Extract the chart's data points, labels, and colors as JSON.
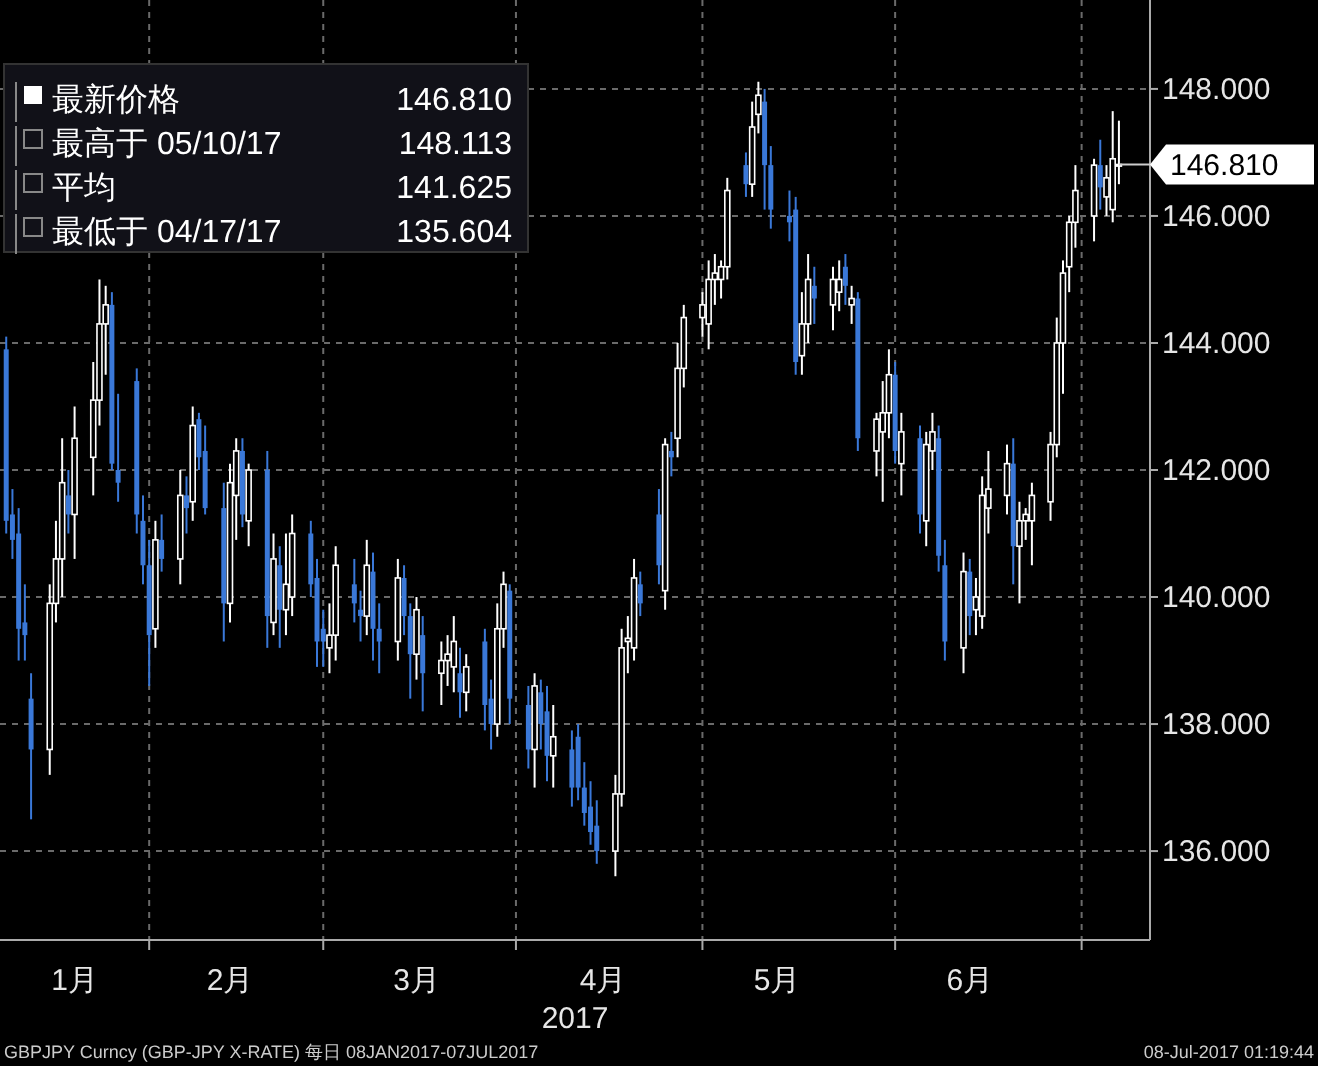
{
  "chart_data": {
    "type": "candlestick",
    "xlabel": "2017",
    "x": [
      "2017-01-09",
      "2017-01-10",
      "2017-01-11",
      "2017-01-12",
      "2017-01-13",
      "2017-01-16",
      "2017-01-17",
      "2017-01-18",
      "2017-01-19",
      "2017-01-20",
      "2017-01-23",
      "2017-01-24",
      "2017-01-25",
      "2017-01-26",
      "2017-01-27",
      "2017-01-30",
      "2017-01-31",
      "2017-02-01",
      "2017-02-02",
      "2017-02-03",
      "2017-02-06",
      "2017-02-07",
      "2017-02-08",
      "2017-02-09",
      "2017-02-10",
      "2017-02-13",
      "2017-02-14",
      "2017-02-15",
      "2017-02-16",
      "2017-02-17",
      "2017-02-20",
      "2017-02-21",
      "2017-02-22",
      "2017-02-23",
      "2017-02-24",
      "2017-02-27",
      "2017-02-28",
      "2017-03-01",
      "2017-03-02",
      "2017-03-03",
      "2017-03-06",
      "2017-03-07",
      "2017-03-08",
      "2017-03-09",
      "2017-03-10",
      "2017-03-13",
      "2017-03-14",
      "2017-03-15",
      "2017-03-16",
      "2017-03-17",
      "2017-03-20",
      "2017-03-21",
      "2017-03-22",
      "2017-03-23",
      "2017-03-24",
      "2017-03-27",
      "2017-03-28",
      "2017-03-29",
      "2017-03-30",
      "2017-03-31",
      "2017-04-03",
      "2017-04-04",
      "2017-04-05",
      "2017-04-06",
      "2017-04-07",
      "2017-04-10",
      "2017-04-11",
      "2017-04-12",
      "2017-04-13",
      "2017-04-14",
      "2017-04-17",
      "2017-04-18",
      "2017-04-19",
      "2017-04-20",
      "2017-04-21",
      "2017-04-24",
      "2017-04-25",
      "2017-04-26",
      "2017-04-27",
      "2017-04-28",
      "2017-05-01",
      "2017-05-02",
      "2017-05-03",
      "2017-05-04",
      "2017-05-05",
      "2017-05-08",
      "2017-05-09",
      "2017-05-10",
      "2017-05-11",
      "2017-05-12",
      "2017-05-15",
      "2017-05-16",
      "2017-05-17",
      "2017-05-18",
      "2017-05-19",
      "2017-05-22",
      "2017-05-23",
      "2017-05-24",
      "2017-05-25",
      "2017-05-26",
      "2017-05-29",
      "2017-05-30",
      "2017-05-31",
      "2017-06-01",
      "2017-06-02",
      "2017-06-05",
      "2017-06-06",
      "2017-06-07",
      "2017-06-08",
      "2017-06-09",
      "2017-06-12",
      "2017-06-13",
      "2017-06-14",
      "2017-06-15",
      "2017-06-16",
      "2017-06-19",
      "2017-06-20",
      "2017-06-21",
      "2017-06-22",
      "2017-06-23",
      "2017-06-26",
      "2017-06-27",
      "2017-06-28",
      "2017-06-29",
      "2017-06-30",
      "2017-07-03",
      "2017-07-04",
      "2017-07-05",
      "2017-07-06",
      "2017-07-07"
    ],
    "ohlc": [
      [
        143.9,
        144.1,
        141.0,
        141.2
      ],
      [
        141.3,
        141.7,
        140.6,
        140.9
      ],
      [
        141.0,
        141.4,
        139.0,
        139.5
      ],
      [
        139.6,
        140.2,
        139.0,
        139.4
      ],
      [
        138.4,
        138.8,
        136.5,
        137.6
      ],
      [
        137.6,
        140.2,
        137.2,
        139.9
      ],
      [
        139.9,
        141.2,
        139.6,
        140.6
      ],
      [
        140.6,
        142.5,
        140.0,
        141.8
      ],
      [
        141.6,
        142.0,
        141.0,
        141.3
      ],
      [
        141.3,
        143.0,
        140.6,
        142.5
      ],
      [
        142.2,
        143.7,
        141.6,
        143.1
      ],
      [
        143.1,
        145.0,
        142.7,
        144.3
      ],
      [
        144.3,
        144.9,
        143.5,
        144.6
      ],
      [
        144.6,
        144.8,
        142.0,
        142.1
      ],
      [
        142.0,
        143.2,
        141.5,
        141.8
      ],
      [
        143.4,
        143.6,
        141.0,
        141.3
      ],
      [
        141.2,
        141.6,
        140.2,
        140.5
      ],
      [
        140.5,
        140.9,
        138.6,
        139.4
      ],
      [
        139.5,
        141.2,
        139.2,
        140.9
      ],
      [
        140.9,
        141.3,
        140.4,
        140.6
      ],
      [
        140.6,
        142.0,
        140.2,
        141.6
      ],
      [
        141.6,
        141.9,
        141.0,
        141.4
      ],
      [
        141.5,
        143.0,
        141.2,
        142.7
      ],
      [
        142.8,
        142.9,
        142.0,
        142.2
      ],
      [
        142.3,
        142.7,
        141.3,
        141.4
      ],
      [
        141.4,
        141.8,
        139.3,
        139.9
      ],
      [
        139.9,
        142.1,
        139.6,
        141.8
      ],
      [
        141.6,
        142.5,
        140.9,
        142.3
      ],
      [
        142.3,
        142.5,
        141.1,
        141.3
      ],
      [
        141.2,
        142.1,
        140.8,
        142.0
      ],
      [
        142.0,
        142.3,
        139.2,
        139.7
      ],
      [
        139.6,
        141.0,
        139.4,
        140.6
      ],
      [
        140.5,
        140.8,
        139.2,
        139.8
      ],
      [
        139.8,
        141.0,
        139.4,
        140.2
      ],
      [
        140.0,
        141.3,
        139.7,
        141.0
      ],
      [
        141.0,
        141.2,
        140.0,
        140.2
      ],
      [
        140.3,
        140.6,
        138.9,
        139.3
      ],
      [
        139.5,
        139.8,
        138.9,
        139.3
      ],
      [
        139.2,
        139.9,
        138.8,
        139.4
      ],
      [
        139.4,
        140.8,
        139.0,
        140.5
      ],
      [
        140.2,
        140.6,
        139.6,
        139.9
      ],
      [
        139.8,
        140.1,
        139.3,
        139.7
      ],
      [
        139.7,
        140.9,
        139.4,
        140.5
      ],
      [
        140.4,
        140.7,
        139.0,
        139.5
      ],
      [
        139.5,
        139.9,
        138.8,
        139.3
      ],
      [
        139.3,
        140.6,
        139.0,
        140.3
      ],
      [
        140.3,
        140.5,
        139.4,
        139.7
      ],
      [
        139.7,
        139.9,
        138.4,
        139.1
      ],
      [
        139.1,
        140.0,
        138.7,
        139.8
      ],
      [
        139.4,
        139.7,
        138.2,
        138.8
      ],
      [
        138.8,
        139.3,
        138.3,
        139.0
      ],
      [
        139.0,
        139.4,
        138.6,
        139.1
      ],
      [
        138.9,
        139.7,
        138.5,
        139.3
      ],
      [
        138.8,
        139.2,
        138.1,
        138.5
      ],
      [
        138.5,
        139.1,
        138.2,
        138.9
      ],
      [
        139.3,
        139.5,
        137.9,
        138.3
      ],
      [
        138.4,
        138.7,
        137.6,
        138.0
      ],
      [
        138.0,
        139.9,
        137.8,
        139.5
      ],
      [
        139.5,
        140.4,
        139.2,
        140.2
      ],
      [
        140.1,
        140.2,
        138.0,
        138.4
      ],
      [
        138.3,
        138.6,
        137.3,
        137.6
      ],
      [
        137.6,
        138.8,
        137.0,
        138.6
      ],
      [
        138.5,
        138.7,
        137.6,
        138.0
      ],
      [
        138.2,
        138.6,
        137.1,
        137.5
      ],
      [
        137.5,
        138.3,
        137.0,
        137.8
      ],
      [
        137.6,
        137.9,
        136.7,
        137.0
      ],
      [
        137.8,
        138.0,
        136.8,
        137.0
      ],
      [
        137.0,
        137.4,
        136.4,
        136.6
      ],
      [
        136.7,
        137.1,
        136.1,
        136.3
      ],
      [
        136.4,
        136.8,
        135.8,
        136.0
      ],
      [
        136.0,
        137.2,
        135.604,
        136.9
      ],
      [
        136.9,
        139.5,
        136.7,
        139.2
      ],
      [
        139.3,
        139.7,
        138.8,
        139.35
      ],
      [
        139.2,
        140.6,
        139.0,
        140.3
      ],
      [
        140.2,
        140.4,
        139.7,
        139.9
      ],
      [
        141.3,
        141.7,
        140.2,
        140.5
      ],
      [
        140.1,
        142.5,
        139.8,
        142.4
      ],
      [
        142.3,
        142.6,
        141.9,
        142.2
      ],
      [
        142.5,
        144.0,
        142.2,
        143.6
      ],
      [
        143.6,
        144.6,
        143.3,
        144.4
      ],
      [
        144.4,
        144.8,
        144.1,
        144.6
      ],
      [
        144.3,
        145.3,
        143.9,
        145.0
      ],
      [
        145.0,
        145.4,
        144.6,
        145.1
      ],
      [
        145.0,
        145.3,
        144.7,
        145.2
      ],
      [
        145.2,
        146.6,
        145.0,
        146.4
      ],
      [
        146.8,
        147.0,
        146.3,
        146.5
      ],
      [
        146.5,
        147.8,
        146.3,
        147.4
      ],
      [
        147.6,
        148.113,
        147.3,
        147.9
      ],
      [
        147.8,
        148.0,
        146.1,
        146.8
      ],
      [
        146.8,
        147.1,
        145.8,
        146.1
      ],
      [
        146.0,
        146.4,
        145.6,
        145.9
      ],
      [
        146.1,
        146.3,
        143.5,
        143.7
      ],
      [
        143.8,
        144.8,
        143.5,
        144.3
      ],
      [
        144.3,
        145.4,
        144.0,
        145.0
      ],
      [
        144.9,
        145.2,
        144.3,
        144.7
      ],
      [
        144.6,
        145.2,
        144.2,
        145.0
      ],
      [
        144.8,
        145.3,
        144.5,
        145.0
      ],
      [
        145.2,
        145.4,
        144.6,
        144.9
      ],
      [
        144.6,
        144.9,
        144.3,
        144.7
      ],
      [
        144.7,
        144.8,
        142.3,
        142.5
      ],
      [
        142.3,
        142.9,
        141.9,
        142.8
      ],
      [
        142.6,
        143.4,
        141.5,
        142.9
      ],
      [
        142.9,
        143.9,
        142.5,
        143.5
      ],
      [
        143.5,
        143.7,
        142.1,
        142.3
      ],
      [
        142.1,
        142.9,
        141.6,
        142.6
      ],
      [
        142.5,
        142.7,
        141.0,
        141.3
      ],
      [
        141.2,
        142.6,
        140.8,
        142.4
      ],
      [
        142.3,
        142.9,
        142.0,
        142.6
      ],
      [
        142.5,
        142.7,
        140.4,
        140.65
      ],
      [
        140.5,
        140.9,
        139.0,
        139.3
      ],
      [
        139.2,
        140.7,
        138.8,
        140.4
      ],
      [
        140.4,
        140.6,
        139.4,
        139.7
      ],
      [
        139.8,
        140.3,
        139.4,
        140.0
      ],
      [
        139.7,
        141.9,
        139.5,
        141.6
      ],
      [
        141.4,
        142.3,
        141.0,
        141.7
      ],
      [
        141.6,
        142.4,
        141.3,
        142.1
      ],
      [
        142.1,
        142.5,
        140.2,
        140.8
      ],
      [
        140.8,
        141.5,
        139.9,
        141.2
      ],
      [
        141.2,
        141.4,
        140.9,
        141.3
      ],
      [
        141.2,
        141.8,
        140.5,
        141.6
      ],
      [
        141.5,
        142.6,
        141.2,
        142.4
      ],
      [
        142.4,
        144.4,
        142.2,
        144.0
      ],
      [
        144.0,
        145.3,
        143.2,
        145.1
      ],
      [
        145.2,
        146.0,
        144.8,
        145.9
      ],
      [
        145.9,
        146.8,
        145.5,
        146.4
      ],
      [
        146.0,
        146.9,
        145.6,
        146.8
      ],
      [
        146.8,
        147.2,
        146.1,
        146.45
      ],
      [
        146.3,
        146.8,
        146.0,
        146.6
      ],
      [
        146.1,
        147.65,
        145.9,
        146.9
      ],
      [
        146.8,
        147.5,
        146.5,
        146.81
      ]
    ],
    "colors": [
      "#3a78d8",
      "#3a78d8",
      "#3a78d8",
      "#3a78d8",
      "#3a78d8",
      "#ffffff",
      "#ffffff",
      "#ffffff",
      "#3a78d8",
      "#ffffff",
      "#ffffff",
      "#ffffff",
      "#ffffff",
      "#3a78d8",
      "#3a78d8",
      "#3a78d8",
      "#3a78d8",
      "#3a78d8",
      "#ffffff",
      "#3a78d8",
      "#ffffff",
      "#3a78d8",
      "#ffffff",
      "#3a78d8",
      "#3a78d8",
      "#3a78d8",
      "#ffffff",
      "#ffffff",
      "#3a78d8",
      "#ffffff",
      "#3a78d8",
      "#ffffff",
      "#3a78d8",
      "#ffffff",
      "#ffffff",
      "#3a78d8",
      "#3a78d8",
      "#3a78d8",
      "#ffffff",
      "#ffffff",
      "#3a78d8",
      "#3a78d8",
      "#ffffff",
      "#3a78d8",
      "#3a78d8",
      "#ffffff",
      "#3a78d8",
      "#3a78d8",
      "#ffffff",
      "#3a78d8",
      "#ffffff",
      "#ffffff",
      "#ffffff",
      "#3a78d8",
      "#ffffff",
      "#3a78d8",
      "#3a78d8",
      "#ffffff",
      "#ffffff",
      "#3a78d8",
      "#3a78d8",
      "#ffffff",
      "#3a78d8",
      "#3a78d8",
      "#ffffff",
      "#3a78d8",
      "#3a78d8",
      "#3a78d8",
      "#3a78d8",
      "#3a78d8",
      "#ffffff",
      "#ffffff",
      "#ffffff",
      "#ffffff",
      "#3a78d8",
      "#3a78d8",
      "#ffffff",
      "#3a78d8",
      "#ffffff",
      "#ffffff",
      "#ffffff",
      "#ffffff",
      "#ffffff",
      "#ffffff",
      "#ffffff",
      "#3a78d8",
      "#ffffff",
      "#ffffff",
      "#3a78d8",
      "#3a78d8",
      "#3a78d8",
      "#3a78d8",
      "#ffffff",
      "#ffffff",
      "#3a78d8",
      "#ffffff",
      "#ffffff",
      "#3a78d8",
      "#ffffff",
      "#3a78d8",
      "#ffffff",
      "#ffffff",
      "#ffffff",
      "#3a78d8",
      "#ffffff",
      "#3a78d8",
      "#ffffff",
      "#ffffff",
      "#3a78d8",
      "#3a78d8",
      "#ffffff",
      "#3a78d8",
      "#ffffff",
      "#ffffff",
      "#ffffff",
      "#ffffff",
      "#3a78d8",
      "#ffffff",
      "#ffffff",
      "#ffffff",
      "#ffffff",
      "#ffffff",
      "#ffffff",
      "#ffffff",
      "#ffffff",
      "#ffffff",
      "#3a78d8",
      "#ffffff",
      "#ffffff",
      "#ffffff"
    ],
    "xlim": [
      "2017-01-08",
      "2017-07-12"
    ],
    "xticks": [
      {
        "value": "2017-01-20",
        "label": "1月"
      },
      {
        "value": "2017-02-01",
        "label": null
      },
      {
        "value": "2017-02-14",
        "label": "2月"
      },
      {
        "value": "2017-03-01",
        "label": null
      },
      {
        "value": "2017-03-16",
        "label": "3月"
      },
      {
        "value": "2017-04-01",
        "label": null
      },
      {
        "value": "2017-04-15",
        "label": "4月"
      },
      {
        "value": "2017-05-01",
        "label": null
      },
      {
        "value": "2017-05-13",
        "label": "5月"
      },
      {
        "value": "2017-06-01",
        "label": null
      },
      {
        "value": "2017-06-13",
        "label": "6月"
      },
      {
        "value": "2017-07-01",
        "label": null
      }
    ],
    "ylim": [
      134.6,
      149.4
    ],
    "yticks": [
      {
        "value": 136,
        "label": "136.000"
      },
      {
        "value": 138,
        "label": "138.000"
      },
      {
        "value": 140,
        "label": "140.000"
      },
      {
        "value": 142,
        "label": "142.000"
      },
      {
        "value": 144,
        "label": "144.000"
      },
      {
        "value": 146,
        "label": "146.000"
      },
      {
        "value": 148,
        "label": "148.000"
      }
    ],
    "grid": true,
    "annotations": [
      "最新价格",
      "146.810",
      "最高于 05/10/17",
      "148.113",
      "平均",
      "141.625",
      "最低于 04/17/17",
      "135.604",
      "GBPJPY Curncy (GBP-JPY X-RATE)  每日 08JAN2017-07JUL2017",
      "08-Jul-2017 01:19:44",
      {
        "text": "146.810",
        "x": "2017-07-07",
        "y": 146.81
      }
    ]
  }
}
